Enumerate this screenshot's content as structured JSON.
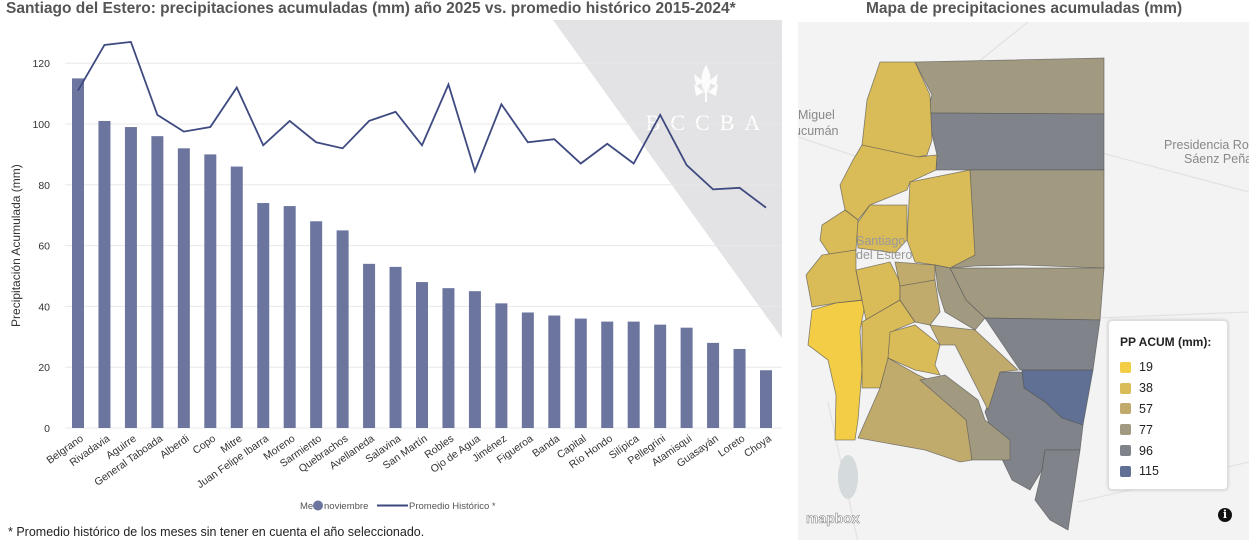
{
  "chart_title": "Santiago del Estero: precipitaciones acumuladas (mm) año 2025 vs. promedio histórico 2015-2024*",
  "map_title": "Mapa de precipitaciones acumuladas (mm)",
  "footnote": "* Promedio histórico de los meses sin tener en cuenta el año seleccionado.",
  "watermark": "BCCBA",
  "chart_data": {
    "type": "bar",
    "title": "Santiago del Estero: precipitaciones acumuladas (mm) año 2025 vs. promedio histórico 2015-2024*",
    "ylabel": "Precipitación Acumulada (mm)",
    "xlabel": "",
    "ylim": [
      0,
      130
    ],
    "yticks": [
      0,
      20,
      40,
      60,
      80,
      100,
      120
    ],
    "grid": true,
    "legend_placement": "bottom",
    "legend_title": "Mes:",
    "categories": [
      "Belgrano",
      "Rivadavia",
      "Aguirre",
      "General Taboada",
      "Alberdi",
      "Copo",
      "Mitre",
      "Juan Felipe Ibarra",
      "Moreno",
      "Sarmiento",
      "Quebrachos",
      "Avellaneda",
      "Salavina",
      "San Martín",
      "Robles",
      "Ojo de Agua",
      "Jiménez",
      "Figueroa",
      "Banda",
      "Capital",
      "Río Hondo",
      "Silípica",
      "Pellegrini",
      "Atamisqui",
      "Guasayán",
      "Loreto",
      "Choya"
    ],
    "series": [
      {
        "name": "noviembre",
        "type": "bar",
        "color": "#6b759e",
        "values": [
          115,
          101,
          99,
          96,
          92,
          90,
          86,
          74,
          73,
          68,
          65,
          54,
          53,
          48,
          46,
          45,
          41,
          38,
          37,
          36,
          35,
          35,
          34,
          33,
          28,
          26,
          19
        ]
      },
      {
        "name": "Promedio Histórico *",
        "type": "line",
        "color": "#3e4a80",
        "values": [
          111,
          126,
          127,
          103,
          97.5,
          99,
          112,
          93,
          101,
          94,
          92,
          101,
          104,
          93,
          113,
          84.5,
          106.5,
          94,
          95,
          87,
          93.5,
          87,
          103,
          86.5,
          78.5,
          79,
          72.5
        ]
      }
    ]
  },
  "map": {
    "place_labels": [
      "Miguel",
      "ucumán",
      "Santiago",
      "del Estero",
      "Presidencia Roc",
      "Sáenz Peña"
    ],
    "legend_title": "PP ACUM (mm):",
    "legend": [
      {
        "label": "19",
        "color": "#f2cd45"
      },
      {
        "label": "38",
        "color": "#d9bb58"
      },
      {
        "label": "57",
        "color": "#c1ab6c"
      },
      {
        "label": "77",
        "color": "#a19a80"
      },
      {
        "label": "96",
        "color": "#80848a"
      },
      {
        "label": "115",
        "color": "#5f7094"
      }
    ],
    "attribution": "mapbox",
    "info_icon": "info-icon"
  }
}
